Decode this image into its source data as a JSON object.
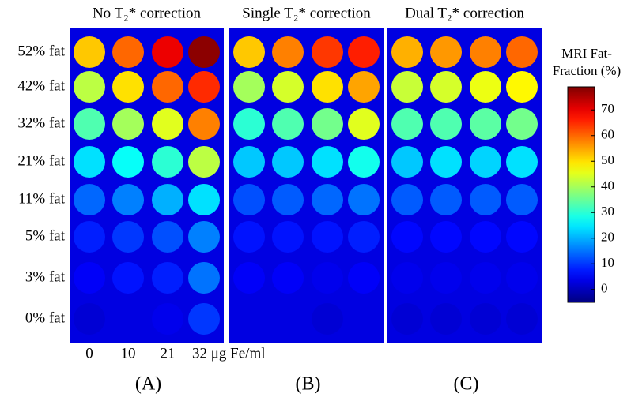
{
  "chart_data": {
    "type": "heatmap",
    "panels": [
      {
        "title": "No T₂* correction",
        "label": "(A)",
        "values": [
          [
            52,
            60,
            70,
            78
          ],
          [
            42,
            50,
            60,
            65
          ],
          [
            33,
            40,
            45,
            58
          ],
          [
            24,
            27,
            30,
            42
          ],
          [
            14,
            16,
            20,
            24
          ],
          [
            8,
            10,
            12,
            16
          ],
          [
            5,
            7,
            8,
            15
          ],
          [
            2,
            3,
            4,
            10
          ]
        ]
      },
      {
        "title": "Single T₂* correction",
        "label": "(B)",
        "values": [
          [
            52,
            58,
            64,
            66
          ],
          [
            40,
            44,
            50,
            55
          ],
          [
            30,
            33,
            36,
            45
          ],
          [
            22,
            22,
            24,
            28
          ],
          [
            12,
            13,
            14,
            15
          ],
          [
            7,
            7,
            7,
            8
          ],
          [
            5,
            5,
            4,
            5
          ],
          [
            3,
            3,
            2,
            3
          ]
        ]
      },
      {
        "title": "Dual T₂* correction",
        "label": "(C)",
        "values": [
          [
            54,
            56,
            58,
            60
          ],
          [
            43,
            44,
            46,
            48
          ],
          [
            33,
            33,
            34,
            36
          ],
          [
            22,
            24,
            23,
            24
          ],
          [
            13,
            13,
            13,
            13
          ],
          [
            6,
            6,
            6,
            6
          ],
          [
            4,
            4,
            4,
            4
          ],
          [
            2,
            2,
            2,
            2
          ]
        ]
      }
    ],
    "rows": [
      "52% fat",
      "42% fat",
      "32% fat",
      "21% fat",
      "11% fat",
      "5% fat",
      "3% fat",
      "0% fat"
    ],
    "columns": [
      "0",
      "10",
      "21",
      "32 μg Fe/ml"
    ],
    "colorbar": {
      "title": [
        "MRI Fat-",
        "Fraction (%)"
      ],
      "lim": [
        -5,
        79
      ],
      "ticks": [
        0,
        10,
        20,
        30,
        40,
        50,
        60,
        70
      ]
    }
  }
}
